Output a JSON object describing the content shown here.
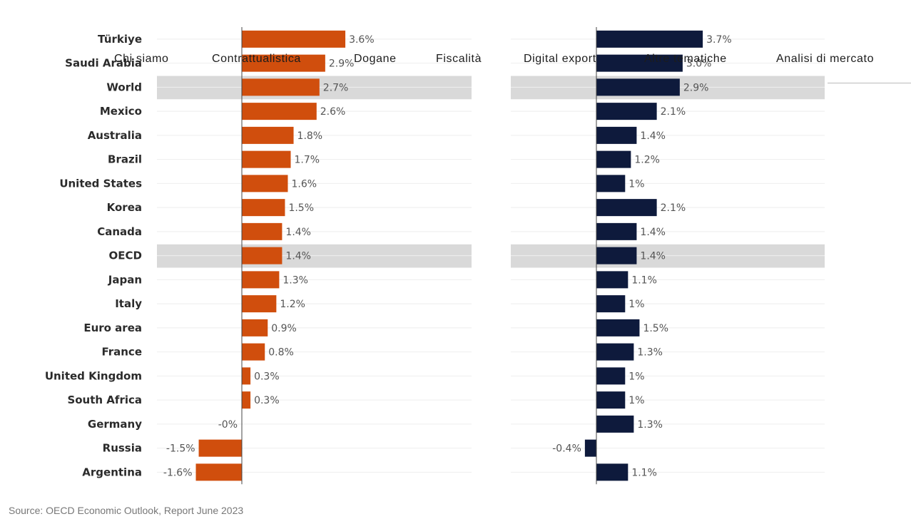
{
  "header_faded": "",
  "nav": {
    "items": [
      {
        "label": "Chi siamo"
      },
      {
        "label": "Contrattualistica"
      },
      {
        "label": "Dogane"
      },
      {
        "label": "Fiscalità"
      },
      {
        "label": "Digital export"
      },
      {
        "label": "Altre tematiche"
      },
      {
        "label": "Analisi di mercato"
      }
    ]
  },
  "source": "Source: OECD Economic Outlook, Report June 2023",
  "colors": {
    "series1": "#d04e0d",
    "series2": "#0e1a3c",
    "highlight_band": "#d9d9d9",
    "gridline": "#eeeeee",
    "axis": "#444444"
  },
  "chart_data": [
    {
      "type": "bar",
      "orientation": "horizontal",
      "categories": [
        "Türkiye",
        "Saudi Arabia",
        "World",
        "Mexico",
        "Australia",
        "Brazil",
        "United States",
        "Korea",
        "Canada",
        "OECD",
        "Japan",
        "Italy",
        "Euro area",
        "France",
        "United Kingdom",
        "South Africa",
        "Germany",
        "Russia",
        "Argentina"
      ],
      "highlighted_categories": [
        "World",
        "OECD"
      ],
      "values": [
        3.6,
        2.9,
        2.7,
        2.6,
        1.8,
        1.7,
        1.6,
        1.5,
        1.4,
        1.4,
        1.3,
        1.2,
        0.9,
        0.8,
        0.3,
        0.3,
        0,
        -1.5,
        -1.6
      ],
      "labels": [
        "3.6%",
        "2.9%",
        "2.7%",
        "2.6%",
        "1.8%",
        "1.7%",
        "1.6%",
        "1.5%",
        "1.4%",
        "1.4%",
        "1.3%",
        "1.2%",
        "0.9%",
        "0.8%",
        "0.3%",
        "0.3%",
        "-0%",
        "-1.5%",
        "-1.6%"
      ],
      "xlim": [
        -1.6,
        3.6
      ],
      "color": "#d04e0d"
    },
    {
      "type": "bar",
      "orientation": "horizontal",
      "categories": [
        "Türkiye",
        "Saudi Arabia",
        "World",
        "Mexico",
        "Australia",
        "Brazil",
        "United States",
        "Korea",
        "Canada",
        "OECD",
        "Japan",
        "Italy",
        "Euro area",
        "France",
        "United Kingdom",
        "South Africa",
        "Germany",
        "Russia",
        "Argentina"
      ],
      "highlighted_categories": [
        "World",
        "OECD"
      ],
      "values": [
        3.7,
        3.0,
        2.9,
        2.1,
        1.4,
        1.2,
        1.0,
        2.1,
        1.4,
        1.4,
        1.1,
        1.0,
        1.5,
        1.3,
        1.0,
        1.0,
        1.3,
        -0.4,
        1.1
      ],
      "labels": [
        "3.7%",
        "3.0%",
        "2.9%",
        "2.1%",
        "1.4%",
        "1.2%",
        "1%",
        "2.1%",
        "1.4%",
        "1.4%",
        "1.1%",
        "1%",
        "1.5%",
        "1.3%",
        "1%",
        "1%",
        "1.3%",
        "-0.4%",
        "1.1%"
      ],
      "xlim": [
        -0.4,
        3.7
      ],
      "color": "#0e1a3c"
    }
  ]
}
